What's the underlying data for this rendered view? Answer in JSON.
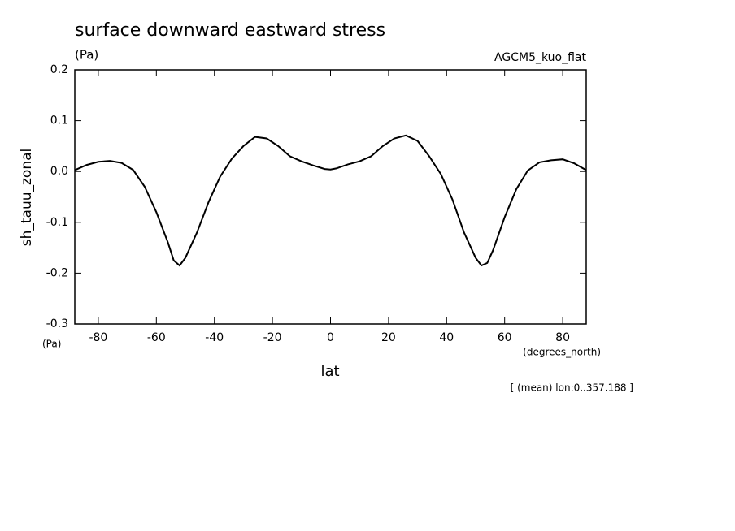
{
  "chart_data": {
    "type": "line",
    "title": "surface downward eastward stress",
    "subtitle": "(Pa)",
    "annotation": "AGCM5_kuo_flat",
    "y_label": "sh_tauu_zonal",
    "y_unit": "(Pa)",
    "x_unit": "(degrees_north)",
    "x_label": "lat",
    "footnote": "[ (mean) lon:0..357.188 ]",
    "x": [
      -88,
      -84,
      -80,
      -76,
      -72,
      -68,
      -64,
      -60,
      -56,
      -54,
      -52,
      -50,
      -46,
      -42,
      -38,
      -34,
      -30,
      -26,
      -22,
      -18,
      -14,
      -10,
      -6,
      -2,
      0,
      2,
      6,
      10,
      14,
      18,
      22,
      26,
      30,
      34,
      38,
      42,
      46,
      50,
      52,
      54,
      56,
      60,
      64,
      68,
      72,
      76,
      80,
      84,
      88
    ],
    "series": [
      {
        "name": "sh_tauu_zonal",
        "color": "#000000",
        "values": [
          0.003,
          0.013,
          0.019,
          0.021,
          0.017,
          0.003,
          -0.03,
          -0.08,
          -0.14,
          -0.175,
          -0.185,
          -0.17,
          -0.12,
          -0.06,
          -0.01,
          0.025,
          0.05,
          0.068,
          0.065,
          0.05,
          0.03,
          0.02,
          0.012,
          0.005,
          0.004,
          0.006,
          0.014,
          0.02,
          0.03,
          0.05,
          0.065,
          0.071,
          0.06,
          0.03,
          -0.005,
          -0.055,
          -0.12,
          -0.17,
          -0.185,
          -0.18,
          -0.155,
          -0.09,
          -0.035,
          0.002,
          0.018,
          0.022,
          0.024,
          0.016,
          0.003
        ]
      }
    ],
    "xlim": [
      -88.1,
      88.1
    ],
    "xticks": [
      -80,
      -60,
      -40,
      -20,
      0,
      20,
      40,
      60,
      80
    ],
    "ylim": [
      -0.3,
      0.2
    ],
    "yticks": [
      -0.3,
      -0.2,
      -0.1,
      {
        "value": 0,
        "label": "0.0"
      },
      0.1,
      0.2
    ]
  }
}
